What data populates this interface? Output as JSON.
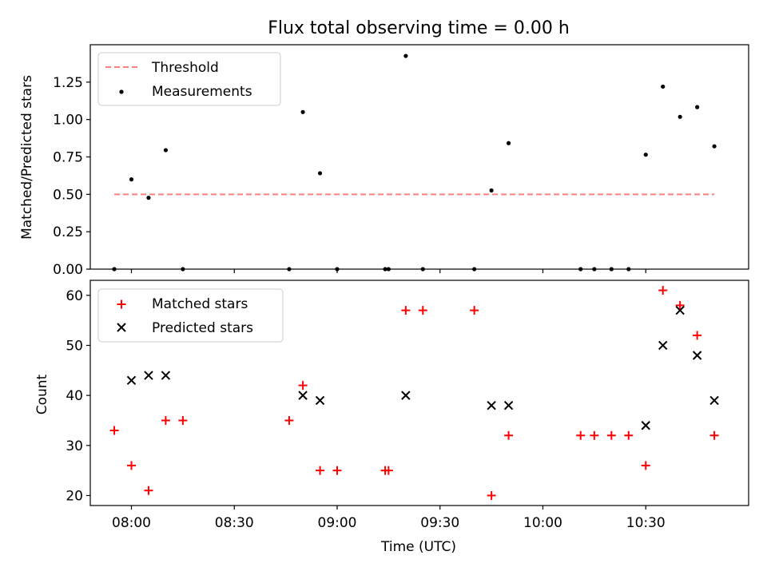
{
  "chart_data": [
    {
      "type": "scatter",
      "title": "Flux total observing time = 0.00 h",
      "xlabel": "",
      "ylabel": "Matched/Predicted stars",
      "ylim": [
        0,
        1.5
      ],
      "xlim_minutes": [
        -12,
        180
      ],
      "yticks": [
        0.0,
        0.25,
        0.5,
        0.75,
        1.0,
        1.25
      ],
      "ytick_labels": [
        "0.00",
        "0.25",
        "0.50",
        "0.75",
        "1.00",
        "1.25"
      ],
      "legend": [
        {
          "label": "Threshold",
          "style": "dashed-line",
          "color": "#ff7f7f"
        },
        {
          "label": "Measurements",
          "style": "dot",
          "color": "#000000"
        }
      ],
      "threshold": {
        "name": "Threshold",
        "y": 0.5,
        "x_start": -5,
        "x_end": 170
      },
      "series": [
        {
          "name": "Measurements",
          "x_minutes": [
            -5,
            0,
            5,
            10,
            15,
            46,
            50,
            55,
            60,
            74,
            75,
            80,
            85,
            100,
            105,
            110,
            131,
            135,
            140,
            145,
            150,
            155,
            160,
            165,
            170
          ],
          "y": [
            0.0,
            0.6,
            0.477,
            0.795,
            0.0,
            0.0,
            1.05,
            0.641,
            0.0,
            0.0,
            0.0,
            1.425,
            0.0,
            0.0,
            0.526,
            0.842,
            0.0,
            0.0,
            0.0,
            0.0,
            0.765,
            1.22,
            1.018,
            1.083,
            0.821
          ]
        }
      ]
    },
    {
      "type": "scatter",
      "title": "",
      "xlabel": "Time (UTC)",
      "ylabel": "Count",
      "ylim": [
        18,
        63
      ],
      "xlim_minutes": [
        -12,
        180
      ],
      "yticks": [
        20,
        30,
        40,
        50,
        60
      ],
      "ytick_labels": [
        "20",
        "30",
        "40",
        "50",
        "60"
      ],
      "xticks_minutes": [
        0,
        30,
        60,
        90,
        120,
        150
      ],
      "xtick_labels": [
        "08:00",
        "08:30",
        "09:00",
        "09:30",
        "10:00",
        "10:30"
      ],
      "legend": [
        {
          "label": "Matched stars",
          "style": "plus",
          "color": "#ff0000"
        },
        {
          "label": "Predicted stars",
          "style": "x",
          "color": "#000000"
        }
      ],
      "series": [
        {
          "name": "Matched stars",
          "x_minutes": [
            -5,
            0,
            5,
            10,
            15,
            46,
            50,
            55,
            60,
            74,
            75,
            80,
            85,
            100,
            105,
            110,
            131,
            135,
            140,
            145,
            150,
            155,
            160,
            165,
            170
          ],
          "y": [
            33,
            26,
            21,
            35,
            35,
            35,
            42,
            25,
            25,
            25,
            25,
            57,
            57,
            57,
            20,
            32,
            32,
            32,
            32,
            32,
            26,
            61,
            58,
            52,
            32
          ]
        },
        {
          "name": "Predicted stars",
          "x_minutes": [
            0,
            5,
            10,
            50,
            55,
            80,
            105,
            110,
            150,
            155,
            160,
            165,
            170
          ],
          "y": [
            43,
            44,
            44,
            40,
            39,
            40,
            38,
            38,
            34,
            50,
            57,
            48,
            39
          ]
        }
      ]
    }
  ]
}
